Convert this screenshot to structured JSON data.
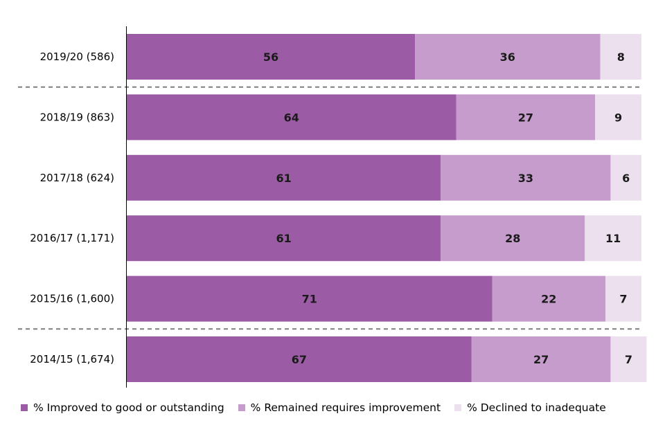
{
  "chart_data": {
    "type": "bar",
    "orientation": "horizontal",
    "stacked": true,
    "categories": [
      "2019/20 (586)",
      "2018/19 (863)",
      "2017/18 (624)",
      "2016/17 (1,171)",
      "2015/16 (1,600)",
      "2014/15 (1,674)"
    ],
    "series": [
      {
        "name": "% Improved to good or outstanding",
        "color": "#9b5ba5",
        "values": [
          56,
          64,
          61,
          61,
          71,
          67
        ]
      },
      {
        "name": "% Remained requires improvement",
        "color": "#c59ccb",
        "values": [
          36,
          27,
          33,
          28,
          22,
          27
        ]
      },
      {
        "name": "% Declined to inadequate",
        "color": "#ece0ee",
        "values": [
          8,
          9,
          6,
          11,
          7,
          7
        ]
      }
    ],
    "xlim": [
      0,
      100
    ],
    "grid": false,
    "legend_position": "bottom",
    "dividers_after_categories": [
      "2019/20 (586)",
      "2015/16 (1,600)"
    ]
  }
}
